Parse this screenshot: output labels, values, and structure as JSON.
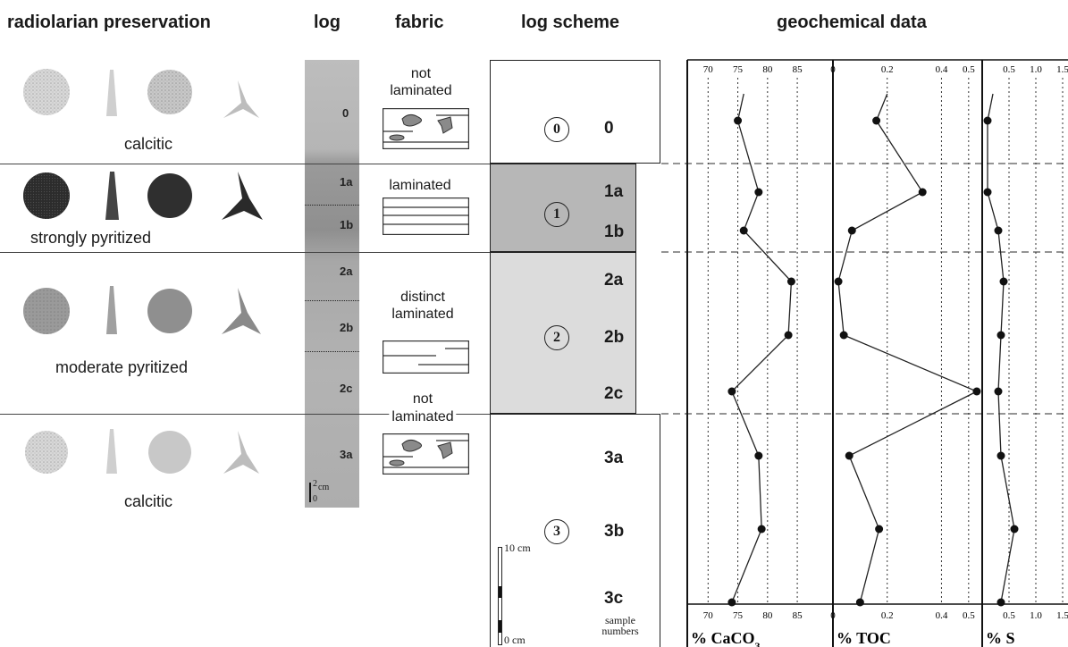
{
  "headers": {
    "radiolarian": "radiolarian preservation",
    "log": "log",
    "fabric": "fabric",
    "log_scheme": "log scheme",
    "geochem": "geochemical data"
  },
  "preservation": [
    "calcitic",
    "strongly pyritized",
    "moderate pyritized",
    "calcitic"
  ],
  "fabric": [
    "not\nlaminated",
    "laminated",
    "distinct\nlaminated",
    "not\nlaminated"
  ],
  "log_labels": [
    "0",
    "1a",
    "1b",
    "2a",
    "2b",
    "2c",
    "3a"
  ],
  "scale_2cm": "2",
  "scale_cm": "cm",
  "scale_0": "0",
  "scheme": {
    "units": [
      "0",
      "1",
      "2",
      "3"
    ],
    "samples": [
      "0",
      "1a",
      "1b",
      "2a",
      "2b",
      "2c",
      "3a",
      "3b",
      "3c"
    ],
    "unit_colors": [
      "#ffffff",
      "#b7b7b7",
      "#dcdcdc",
      "#ffffff"
    ],
    "scale_top": "10 cm",
    "scale_bottom": "0 cm",
    "sample_caption": "sample\nnumbers"
  },
  "chart_data": [
    {
      "type": "line",
      "xlabel": "% CaCO",
      "xlabel_sub": "3",
      "xticks": [
        "70",
        "75",
        "80",
        "85"
      ],
      "xlim": [
        66.5,
        91
      ],
      "samples": [
        "0",
        "1a",
        "1b",
        "2a",
        "2b",
        "2c",
        "3a",
        "3b",
        "3c"
      ],
      "values": [
        75,
        78.5,
        76,
        84,
        83.5,
        74,
        78.5,
        79,
        74
      ],
      "top_value": 76
    },
    {
      "type": "line",
      "xlabel": "% TOC",
      "xticks": [
        "0",
        "0.2",
        "0.4",
        "0.5"
      ],
      "xlim": [
        0,
        0.55
      ],
      "samples": [
        "0",
        "1a",
        "1b",
        "2a",
        "2b",
        "2c",
        "3a",
        "3b",
        "3c"
      ],
      "values": [
        0.16,
        0.33,
        0.07,
        0.02,
        0.04,
        0.53,
        0.06,
        0.17,
        0.1
      ],
      "top_value": 0.2
    },
    {
      "type": "line",
      "xlabel": "% S",
      "xticks": [
        "0.5",
        "1.0",
        "1.5"
      ],
      "xlim": [
        0,
        1.6
      ],
      "samples": [
        "0",
        "1a",
        "1b",
        "2a",
        "2b",
        "2c",
        "3a",
        "3b",
        "3c"
      ],
      "values": [
        0.1,
        0.1,
        0.3,
        0.4,
        0.35,
        0.3,
        0.35,
        0.6,
        0.35
      ],
      "top_value": 0.2
    }
  ]
}
